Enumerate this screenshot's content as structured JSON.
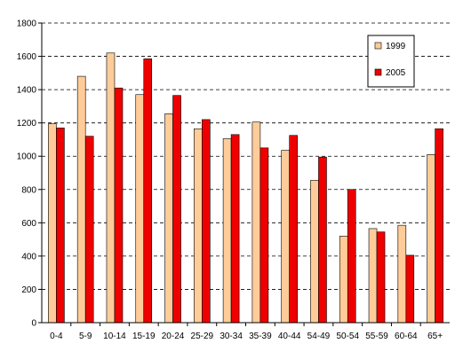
{
  "chart_data": {
    "type": "bar",
    "title": "",
    "xlabel": "",
    "ylabel": "",
    "ylim": [
      0,
      1800
    ],
    "yticks": [
      0,
      200,
      400,
      600,
      800,
      1000,
      1200,
      1400,
      1600,
      1800
    ],
    "grid": "horizontal dashed",
    "legend_position": "top-right",
    "categories": [
      "0-4",
      "5-9",
      "10-14",
      "15-19",
      "20-24",
      "25-29",
      "30-34",
      "35-39",
      "40-44",
      "54-49",
      "50-54",
      "55-59",
      "60-64",
      "65+"
    ],
    "series": [
      {
        "name": "1999",
        "color": "#FFCC99",
        "values": [
          1195,
          1480,
          1620,
          1370,
          1255,
          1165,
          1105,
          1205,
          1035,
          855,
          520,
          565,
          585,
          1010
        ]
      },
      {
        "name": "2005",
        "color": "#EE0000",
        "values": [
          1170,
          1120,
          1410,
          1585,
          1365,
          1220,
          1130,
          1050,
          1125,
          995,
          800,
          545,
          405,
          1165
        ]
      }
    ]
  }
}
